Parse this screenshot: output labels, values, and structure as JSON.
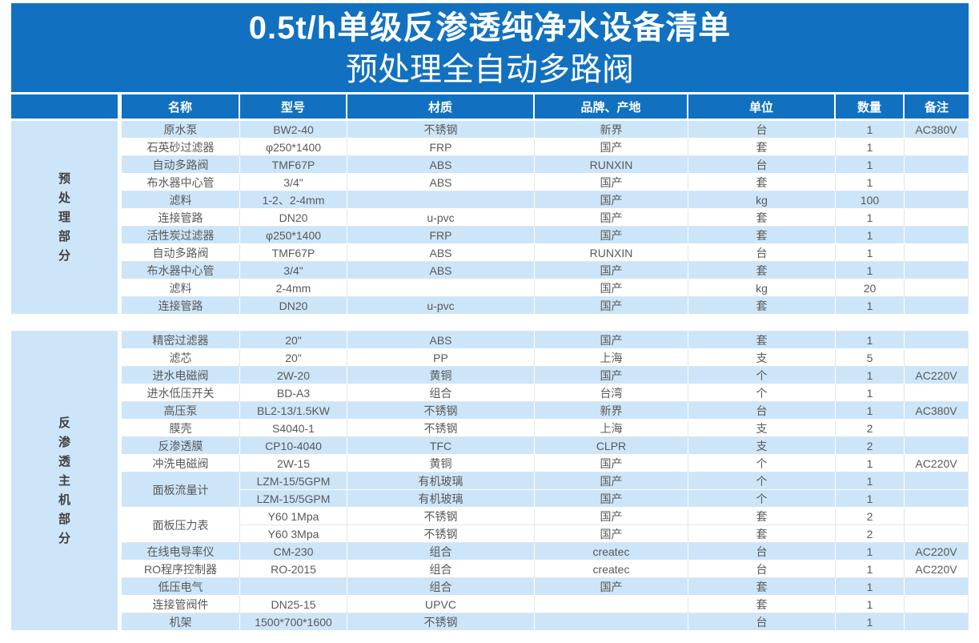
{
  "banner": {
    "title": "0.5t/h单级反渗透纯净水设备清单",
    "subtitle": "预处理全自动多路阀"
  },
  "colors": {
    "header_blue": "#1171C0",
    "row_tint": "#CDE5F8",
    "body_text": "#595959",
    "header_text": "#FFFFFF"
  },
  "columns": [
    "名称",
    "型号",
    "材质",
    "品牌、产地",
    "单位",
    "数量",
    "备注"
  ],
  "sections": [
    {
      "group": "预处理部分",
      "rows": [
        {
          "tint": true,
          "name": "原水泵",
          "model": "BW2-40",
          "material": "不锈钢",
          "brand": "新界",
          "unit": "台",
          "qty": "1",
          "note": "AC380V"
        },
        {
          "tint": false,
          "name": "石英砂过滤器",
          "model": "φ250*1400",
          "material": "FRP",
          "brand": "国产",
          "unit": "套",
          "qty": "1",
          "note": ""
        },
        {
          "tint": true,
          "name": "自动多路阀",
          "model": "TMF67P",
          "material": "ABS",
          "brand": "RUNXIN",
          "unit": "台",
          "qty": "1",
          "note": ""
        },
        {
          "tint": false,
          "name": "布水器中心管",
          "model": "3/4\"",
          "material": "ABS",
          "brand": "国产",
          "unit": "套",
          "qty": "1",
          "note": ""
        },
        {
          "tint": true,
          "name": "滤料",
          "model": "1-2、2-4mm",
          "material": "",
          "brand": "国产",
          "unit": "kg",
          "qty": "100",
          "note": ""
        },
        {
          "tint": false,
          "name": "连接管路",
          "model": "DN20",
          "material": "u-pvc",
          "brand": "国产",
          "unit": "套",
          "qty": "1",
          "note": ""
        },
        {
          "tint": true,
          "name": "活性炭过滤器",
          "model": "φ250*1400",
          "material": "FRP",
          "brand": "国产",
          "unit": "套",
          "qty": "1",
          "note": ""
        },
        {
          "tint": false,
          "name": "自动多路阀",
          "model": "TMF67P",
          "material": "ABS",
          "brand": "RUNXIN",
          "unit": "台",
          "qty": "1",
          "note": ""
        },
        {
          "tint": true,
          "name": "布水器中心管",
          "model": "3/4\"",
          "material": "ABS",
          "brand": "国产",
          "unit": "套",
          "qty": "1",
          "note": ""
        },
        {
          "tint": false,
          "name": "滤料",
          "model": "2-4mm",
          "material": "",
          "brand": "国产",
          "unit": "kg",
          "qty": "20",
          "note": ""
        },
        {
          "tint": true,
          "name": "连接管路",
          "model": "DN20",
          "material": "u-pvc",
          "brand": "国产",
          "unit": "套",
          "qty": "1",
          "note": ""
        }
      ]
    },
    {
      "group": "反渗透主机部分",
      "rows": [
        {
          "tint": true,
          "name": "精密过滤器",
          "model": "20\"",
          "material": "ABS",
          "brand": "国产",
          "unit": "套",
          "qty": "1",
          "note": ""
        },
        {
          "tint": false,
          "name": "滤芯",
          "model": "20\"",
          "material": "PP",
          "brand": "上海",
          "unit": "支",
          "qty": "5",
          "note": ""
        },
        {
          "tint": true,
          "name": "进水电磁阀",
          "model": "2W-20",
          "material": "黄铜",
          "brand": "国产",
          "unit": "个",
          "qty": "1",
          "note": "AC220V"
        },
        {
          "tint": false,
          "name": "进水低压开关",
          "model": "BD-A3",
          "material": "组合",
          "brand": "台湾",
          "unit": "个",
          "qty": "1",
          "note": ""
        },
        {
          "tint": true,
          "name": "高压泵",
          "model": "BL2-13/1.5KW",
          "material": "不锈钢",
          "brand": "新界",
          "unit": "台",
          "qty": "1",
          "note": "AC380V"
        },
        {
          "tint": false,
          "name": "膜壳",
          "model": "S4040-1",
          "material": "不锈钢",
          "brand": "上海",
          "unit": "支",
          "qty": "2",
          "note": ""
        },
        {
          "tint": true,
          "name": "反渗透膜",
          "model": "CP10-4040",
          "material": "TFC",
          "brand": "CLPR",
          "unit": "支",
          "qty": "2",
          "note": ""
        },
        {
          "tint": false,
          "name": "冲洗电磁阀",
          "model": "2W-15",
          "material": "黄铜",
          "brand": "国产",
          "unit": "个",
          "qty": "1",
          "note": "AC220V"
        },
        {
          "tint": true,
          "name": "面板流量计",
          "name_rowspan": 2,
          "model": "LZM-15/5GPM",
          "material": "有机玻璃",
          "brand": "国产",
          "unit": "个",
          "qty": "1",
          "note": ""
        },
        {
          "tint": true,
          "name_merged": true,
          "model": "LZM-15/5GPM",
          "material": "有机玻璃",
          "brand": "国产",
          "unit": "个",
          "qty": "1",
          "note": ""
        },
        {
          "tint": false,
          "name": "面板压力表",
          "name_rowspan": 2,
          "model": "Y60 1Mpa",
          "material": "不锈钢",
          "brand": "国产",
          "unit": "套",
          "qty": "2",
          "note": ""
        },
        {
          "tint": false,
          "name_merged": true,
          "model": "Y60 3Mpa",
          "material": "不锈钢",
          "brand": "国产",
          "unit": "套",
          "qty": "2",
          "note": ""
        },
        {
          "tint": true,
          "name": "在线电导率仪",
          "model": "CM-230",
          "material": "组合",
          "brand": "createc",
          "unit": "台",
          "qty": "1",
          "note": "AC220V"
        },
        {
          "tint": false,
          "name": "RO程序控制器",
          "model": "RO-2015",
          "material": "组合",
          "brand": "createc",
          "unit": "台",
          "qty": "1",
          "note": "AC220V"
        },
        {
          "tint": true,
          "name": "低压电气",
          "model": "",
          "material": "组合",
          "brand": "国产",
          "unit": "套",
          "qty": "1",
          "note": ""
        },
        {
          "tint": false,
          "name": "连接管阀件",
          "model": "DN25-15",
          "material": "UPVC",
          "brand": "",
          "unit": "套",
          "qty": "1",
          "note": ""
        },
        {
          "tint": true,
          "name": "机架",
          "model": "1500*700*1600",
          "material": "不锈钢",
          "brand": "",
          "unit": "台",
          "qty": "1",
          "note": ""
        }
      ]
    }
  ]
}
